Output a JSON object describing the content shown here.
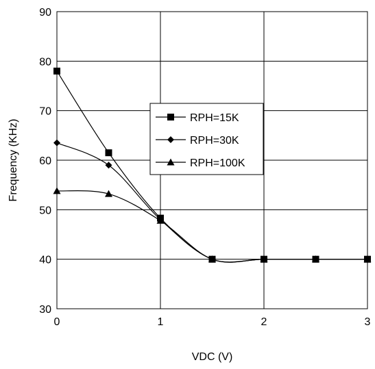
{
  "chart_data": {
    "type": "line",
    "title": "",
    "xlabel": "VDC (V)",
    "ylabel": "Frequency (KHz)",
    "xlim": [
      0,
      3
    ],
    "ylim": [
      30,
      90
    ],
    "xticks": [
      0,
      1,
      2,
      3
    ],
    "yticks": [
      30,
      40,
      50,
      60,
      70,
      80,
      90
    ],
    "grid": true,
    "smooth": true,
    "legend_position": "center-right",
    "series": [
      {
        "name": "RPH=15K",
        "marker": "square",
        "color": "#000000",
        "points": [
          [
            0,
            78
          ],
          [
            0.5,
            61.5
          ],
          [
            1,
            48.3
          ],
          [
            1.5,
            40
          ],
          [
            2,
            40
          ],
          [
            2.5,
            40
          ],
          [
            3,
            40
          ]
        ]
      },
      {
        "name": "RPH=30K",
        "marker": "diamond",
        "color": "#000000",
        "points": [
          [
            0,
            63.5
          ],
          [
            0.5,
            59
          ],
          [
            1,
            48
          ],
          [
            1.5,
            40
          ],
          [
            2,
            40
          ],
          [
            2.5,
            40
          ],
          [
            3,
            40
          ]
        ]
      },
      {
        "name": "RPH=100K",
        "marker": "triangle",
        "color": "#000000",
        "points": [
          [
            0,
            53.8
          ],
          [
            0.5,
            53.2
          ],
          [
            1,
            47.8
          ],
          [
            1.5,
            40
          ],
          [
            2,
            40
          ],
          [
            2.5,
            40
          ],
          [
            3,
            40
          ]
        ]
      }
    ]
  }
}
